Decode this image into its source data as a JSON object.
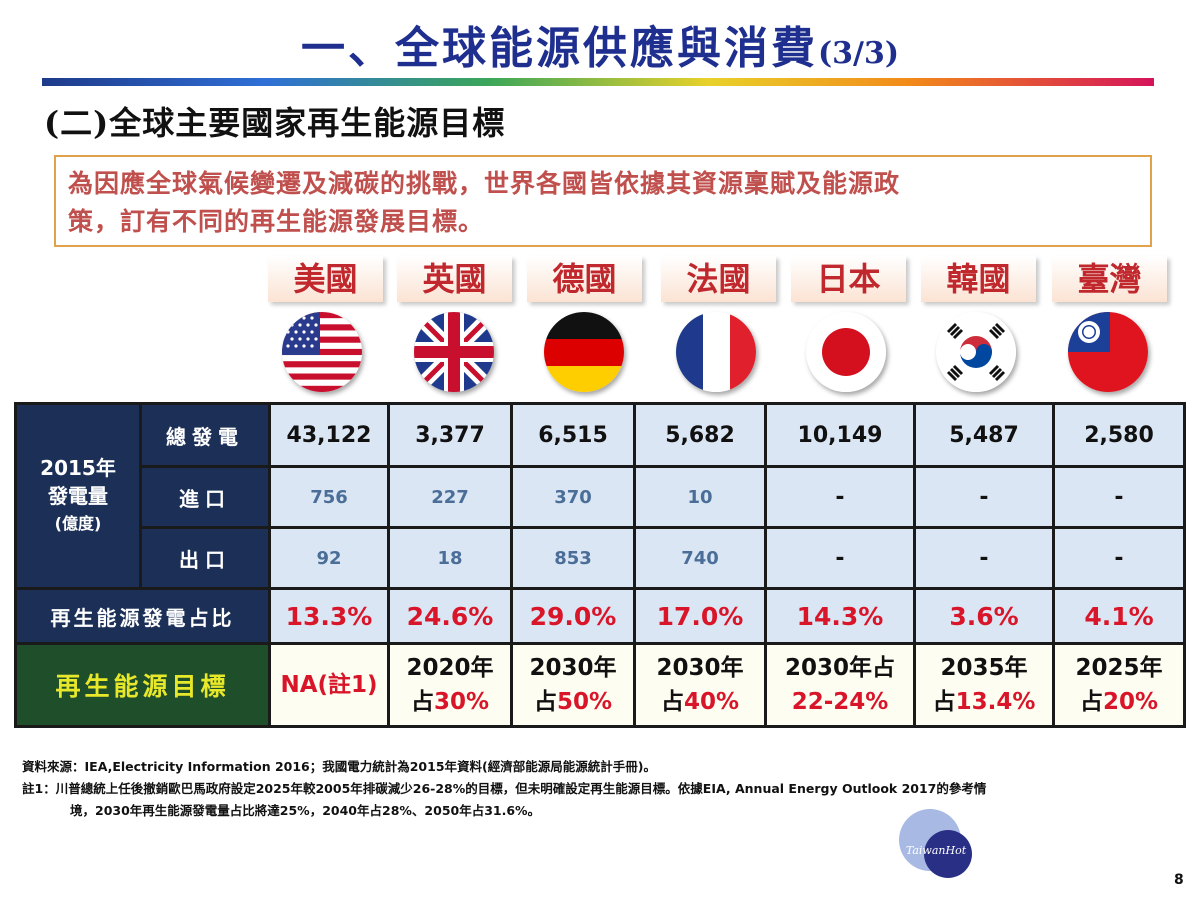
{
  "title": "一、全球能源供應與消費",
  "title_page": "(3/3)",
  "subtitle": "(二)全球主要國家再生能源目標",
  "intro": [
    "為因應全球氣候變遷及減碳的挑戰，世界各國皆依據其資源稟賦及能源政",
    "策，訂有不同的再生能源發展目標。"
  ],
  "countries": [
    "美國",
    "英國",
    "德國",
    "法國",
    "日本",
    "韓國",
    "臺灣"
  ],
  "flags": [
    "us-flag-icon",
    "uk-flag-icon",
    "germany-flag-icon",
    "france-flag-icon",
    "japan-flag-icon",
    "korea-flag-icon",
    "taiwan-flag-icon"
  ],
  "table": {
    "group_label": [
      "2015年",
      "發電量",
      "(億度)"
    ],
    "row_labels": {
      "total": "總發電",
      "import": "進口",
      "export": "出口",
      "ratio": "再生能源發電占比",
      "goal": "再生能源目標"
    },
    "total": [
      "43,122",
      "3,377",
      "6,515",
      "5,682",
      "10,149",
      "5,487",
      "2,580"
    ],
    "import": [
      "756",
      "227",
      "370",
      "10",
      "-",
      "-",
      "-"
    ],
    "export": [
      "92",
      "18",
      "853",
      "740",
      "-",
      "-",
      "-"
    ],
    "ratio": [
      "13.3%",
      "24.6%",
      "29.0%",
      "17.0%",
      "14.3%",
      "3.6%",
      "4.1%"
    ],
    "goal": [
      {
        "l1": "NA(註1)",
        "l2": ""
      },
      {
        "l1": "2020年",
        "l2a": "占",
        "l2b": "30%"
      },
      {
        "l1": "2030年",
        "l2a": "占",
        "l2b": "50%"
      },
      {
        "l1": "2030年",
        "l2a": "占",
        "l2b": "40%"
      },
      {
        "l1": "2030年占",
        "l2a": "",
        "l2b": "22-24%"
      },
      {
        "l1": "2035年",
        "l2a": "占",
        "l2b": "13.4%"
      },
      {
        "l1": "2025年",
        "l2a": "占",
        "l2b": "20%"
      }
    ]
  },
  "notes": {
    "source": "資料來源：IEA,Electricity Information 2016；我國電力統計為2015年資料(經濟部能源局能源統計手冊)。",
    "note1a": "註1：川普總統上任後撤銷歐巴馬政府設定2025年較2005年排碳減少26-28%的目標，但未明確設定再生能源目標。依據EIA, Annual Energy Outlook 2017的參考情",
    "note1b": "境，2030年再生能源發電量占比將達25%，2040年占28%、2050年占31.6%。"
  },
  "watermark": "TaiwanHot",
  "page_number": "8"
}
